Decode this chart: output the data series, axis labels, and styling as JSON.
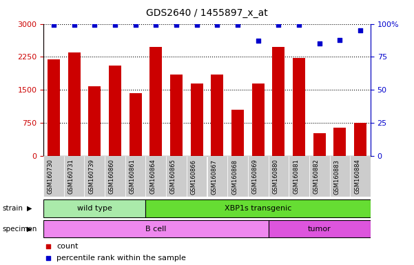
{
  "title": "GDS2640 / 1455897_x_at",
  "samples": [
    "GSM160730",
    "GSM160731",
    "GSM160739",
    "GSM160860",
    "GSM160861",
    "GSM160864",
    "GSM160865",
    "GSM160866",
    "GSM160867",
    "GSM160868",
    "GSM160869",
    "GSM160880",
    "GSM160881",
    "GSM160882",
    "GSM160883",
    "GSM160884"
  ],
  "counts": [
    2200,
    2350,
    1580,
    2050,
    1430,
    2480,
    1850,
    1640,
    1850,
    1050,
    1640,
    2470,
    2230,
    520,
    640,
    750
  ],
  "percentiles": [
    99,
    99,
    99,
    99,
    99,
    99,
    99,
    99,
    99,
    99,
    87,
    99,
    99,
    85,
    88,
    95
  ],
  "strain_groups": [
    {
      "label": "wild type",
      "start": 0,
      "end": 5,
      "color": "#aaeaaa"
    },
    {
      "label": "XBP1s transgenic",
      "start": 5,
      "end": 16,
      "color": "#66dd33"
    }
  ],
  "specimen_groups": [
    {
      "label": "B cell",
      "start": 0,
      "end": 11,
      "color": "#ee88ee"
    },
    {
      "label": "tumor",
      "start": 11,
      "end": 16,
      "color": "#dd55dd"
    }
  ],
  "bar_color": "#cc0000",
  "dot_color": "#0000cc",
  "ylim_left": [
    0,
    3000
  ],
  "ylim_right": [
    0,
    100
  ],
  "yticks_left": [
    0,
    750,
    1500,
    2250,
    3000
  ],
  "yticks_right": [
    0,
    25,
    50,
    75,
    100
  ],
  "legend_count_color": "#cc0000",
  "legend_dot_color": "#0000cc",
  "tick_area_color": "#cccccc"
}
